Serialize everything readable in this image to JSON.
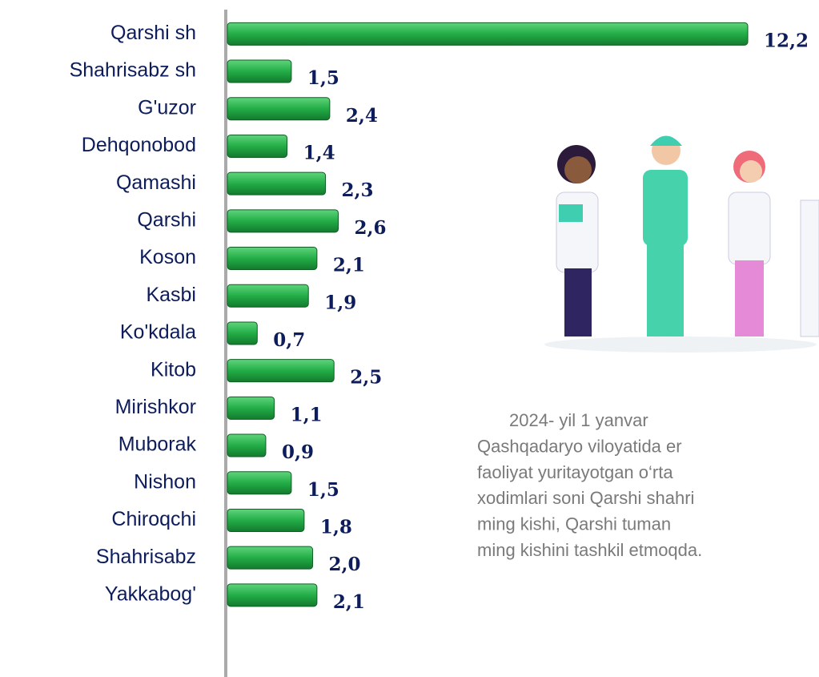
{
  "chart_data": {
    "type": "bar",
    "orientation": "horizontal",
    "categories": [
      "Qarshi sh",
      "Shahrisabz sh",
      "G'uzor",
      "Dehqonobod",
      "Qamashi",
      "Qarshi",
      "Koson",
      "Kasbi",
      "Ko'kdala",
      "Kitob",
      "Mirishkor",
      "Muborak",
      "Nishon",
      "Chiroqchi",
      "Shahrisabz",
      "Yakkabog'"
    ],
    "values": [
      12.2,
      1.5,
      2.4,
      1.4,
      2.3,
      2.6,
      2.1,
      1.9,
      0.7,
      2.5,
      1.1,
      0.9,
      1.5,
      1.8,
      2.0,
      2.1
    ],
    "value_labels": [
      "12,2",
      "1,5",
      "2,4",
      "1,4",
      "2,3",
      "2,6",
      "2,1",
      "1,9",
      "0,7",
      "2,5",
      "1,1",
      "0,9",
      "1,5",
      "1,8",
      "2,0",
      "2,1"
    ],
    "color": "#23ad47",
    "xlim": [
      0,
      12.5
    ],
    "annotation": [
      "2024- yil 1 yanvar",
      "Qashqadaryo viloyatida er",
      "faoliyat yuritayotgan o‘rta",
      "xodimlari soni Qarshi shahri",
      "ming kishi, Qarshi tuman",
      "ming kishini tashkil etmoqda."
    ]
  }
}
